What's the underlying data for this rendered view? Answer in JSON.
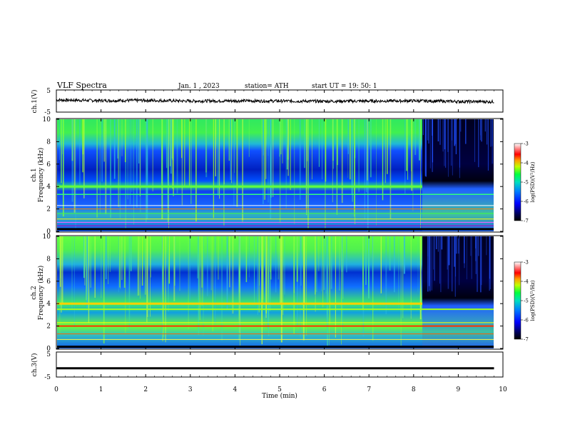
{
  "header": {
    "title": "VLF  Spectra",
    "date": "Jan.  1  , 2023",
    "station": "station= ATH",
    "start": "start  UT  =   19: 50: 1"
  },
  "colors": {
    "spectrogram_low": "#000000",
    "spectrogram_mid": "#0040ff",
    "spectrogram_high": "#00ff40",
    "spectrogram_peak": "#ff0000",
    "waveform": "#000000"
  },
  "chart_data": [
    {
      "type": "line",
      "panel": "ch1-waveform",
      "ylabel": "ch.1(V)",
      "ylim": [
        -5,
        5
      ],
      "yticks": [
        "5",
        "-5"
      ],
      "x": [
        0,
        1,
        2,
        3,
        4,
        5,
        6,
        7,
        8,
        9,
        9.8
      ],
      "values": [
        0.5,
        0.2,
        0.3,
        0.0,
        0.1,
        0.0,
        -0.1,
        0.0,
        0.1,
        -0.2,
        -0.3
      ]
    },
    {
      "type": "heatmap",
      "panel": "ch1-spectrogram",
      "ylabel_line1": "ch.1",
      "ylabel_line2": "Frequency  (kHz)",
      "ylim": [
        0,
        10
      ],
      "yticks": [
        "0",
        "2",
        "4",
        "6",
        "8",
        "10"
      ],
      "colorbar_label": "log(PSD)(V²/Hz)",
      "colorbar_ticks": [
        "-3",
        "-4",
        "-5",
        "-6",
        "-7"
      ],
      "colorbar_range": [
        -7,
        -3
      ]
    },
    {
      "type": "heatmap",
      "panel": "ch2-spectrogram",
      "ylabel_line1": "ch.2",
      "ylabel_line2": "Frequency  (kHz)",
      "ylim": [
        0,
        10
      ],
      "yticks": [
        "0",
        "2",
        "4",
        "6",
        "8",
        "10"
      ],
      "colorbar_label": "log(PSD)(V²/Hz)",
      "colorbar_ticks": [
        "-3",
        "-4",
        "-5",
        "-6",
        "-7"
      ],
      "colorbar_range": [
        -7,
        -3
      ]
    },
    {
      "type": "line",
      "panel": "ch3-waveform",
      "ylabel": "ch.3(V)",
      "ylim": [
        -5,
        5
      ],
      "yticks": [
        "5",
        "-5"
      ],
      "x": [
        0,
        9.8
      ],
      "values": [
        -1.5,
        -1.5
      ]
    }
  ],
  "xaxis": {
    "label": "Time  (min)",
    "xlim": [
      0,
      10
    ],
    "ticks": [
      "0",
      "1",
      "2",
      "3",
      "4",
      "5",
      "6",
      "7",
      "8",
      "9",
      "10"
    ]
  }
}
